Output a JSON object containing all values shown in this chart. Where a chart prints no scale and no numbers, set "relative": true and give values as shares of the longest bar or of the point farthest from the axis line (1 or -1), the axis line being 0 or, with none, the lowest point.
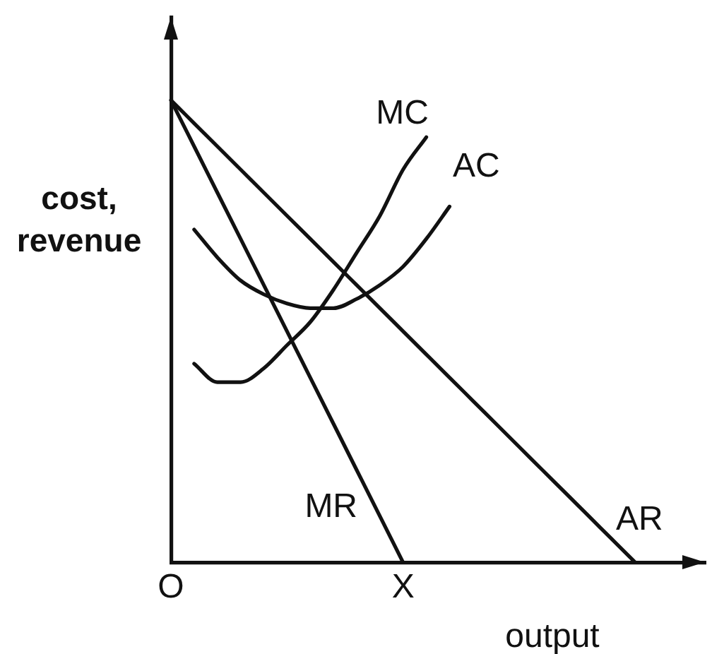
{
  "chart_data": {
    "type": "line",
    "relative": true,
    "xlabel": "output",
    "ylabel": "cost, revenue",
    "categories": [
      "O",
      null,
      null,
      null,
      null,
      null,
      null,
      null,
      null,
      null,
      "X",
      null,
      null,
      null,
      null,
      null,
      null,
      null,
      null,
      null,
      null,
      null,
      null,
      null
    ],
    "series": [
      {
        "name": "MC",
        "color": "#111111",
        "values": [
          null,
          0.43,
          0.39,
          0.39,
          0.42,
          0.47,
          0.52,
          0.59,
          0.67,
          0.75,
          0.85,
          0.92,
          null,
          null,
          null,
          null,
          null,
          null,
          null,
          null,
          null,
          null,
          null,
          null
        ]
      },
      {
        "name": "AC",
        "color": "#111111",
        "values": [
          null,
          0.72,
          0.66,
          0.61,
          0.58,
          0.56,
          0.55,
          0.55,
          0.57,
          0.6,
          0.64,
          0.7,
          0.77,
          null,
          null,
          null,
          null,
          null,
          null,
          null,
          null,
          null,
          null,
          null
        ]
      },
      {
        "name": "MR",
        "color": "#111111",
        "values": [
          1,
          0.9,
          0.8,
          0.7,
          0.6,
          0.5,
          0.4,
          0.3,
          0.2,
          0.1,
          0,
          null,
          null,
          null,
          null,
          null,
          null,
          null,
          null,
          null,
          null,
          null,
          null,
          null
        ]
      },
      {
        "name": "AR",
        "color": "#111111",
        "values": [
          1,
          0.95,
          0.9,
          0.85,
          0.8,
          0.75,
          0.7,
          0.65,
          0.6,
          0.55,
          0.5,
          0.45,
          0.4,
          0.35,
          0.3,
          0.25,
          0.2,
          0.15,
          0.1,
          0.05,
          0,
          null,
          null,
          null
        ]
      }
    ]
  }
}
